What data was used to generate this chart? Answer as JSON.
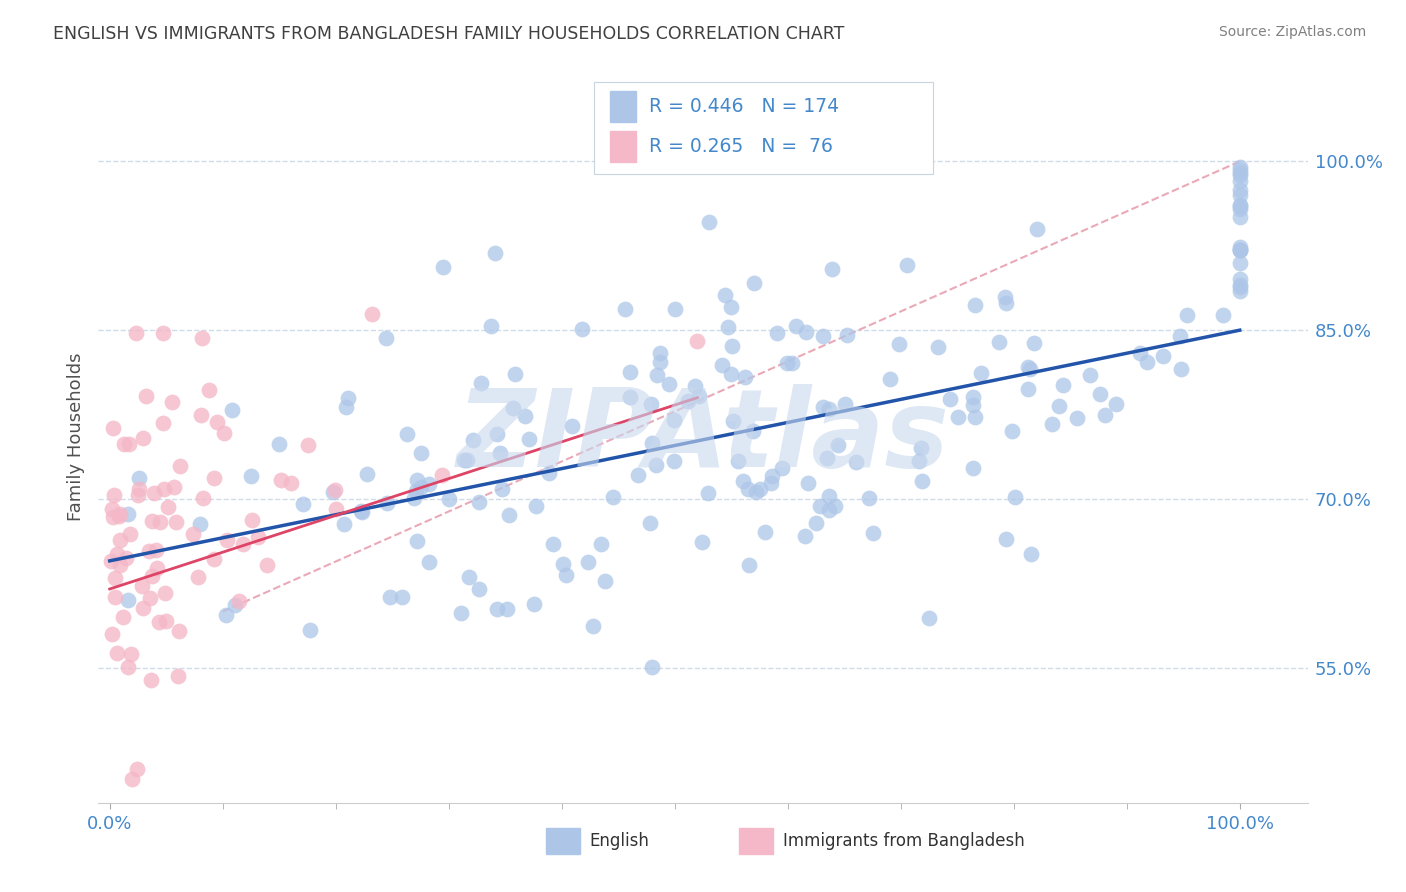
{
  "title": "ENGLISH VS IMMIGRANTS FROM BANGLADESH FAMILY HOUSEHOLDS CORRELATION CHART",
  "source_text": "Source: ZipAtlas.com",
  "ylabel": "Family Households",
  "legend_labels": [
    "English",
    "Immigrants from Bangladesh"
  ],
  "R_english": 0.446,
  "N_english": 174,
  "R_bangladesh": 0.265,
  "N_bangladesh": 76,
  "english_color": "#adc6e8",
  "bangladesh_color": "#f4b8c8",
  "english_line_color": "#2255aa",
  "bangladesh_line_color": "#dd4466",
  "ref_line_color": "#e8a0b0",
  "grid_color": "#d0dce8",
  "title_color": "#404040",
  "source_color": "#808080",
  "tick_color": "#4488cc",
  "watermark_color": "#c8d8ee",
  "watermark_text": "ZIPAtlas",
  "eng_line_x0": 0.0,
  "eng_line_y0": 0.645,
  "eng_line_x1": 1.0,
  "eng_line_y1": 0.85,
  "ban_line_x0": 0.0,
  "ban_line_y0": 0.62,
  "ban_line_x1": 0.52,
  "ban_line_y1": 0.79,
  "ref_line_x0": 0.1,
  "ref_line_y0": 0.6,
  "ref_line_x1": 1.0,
  "ref_line_y1": 1.0,
  "xlim": [
    -0.01,
    1.06
  ],
  "ylim": [
    0.43,
    1.08
  ],
  "yticks": [
    0.55,
    0.7,
    0.85,
    1.0
  ]
}
